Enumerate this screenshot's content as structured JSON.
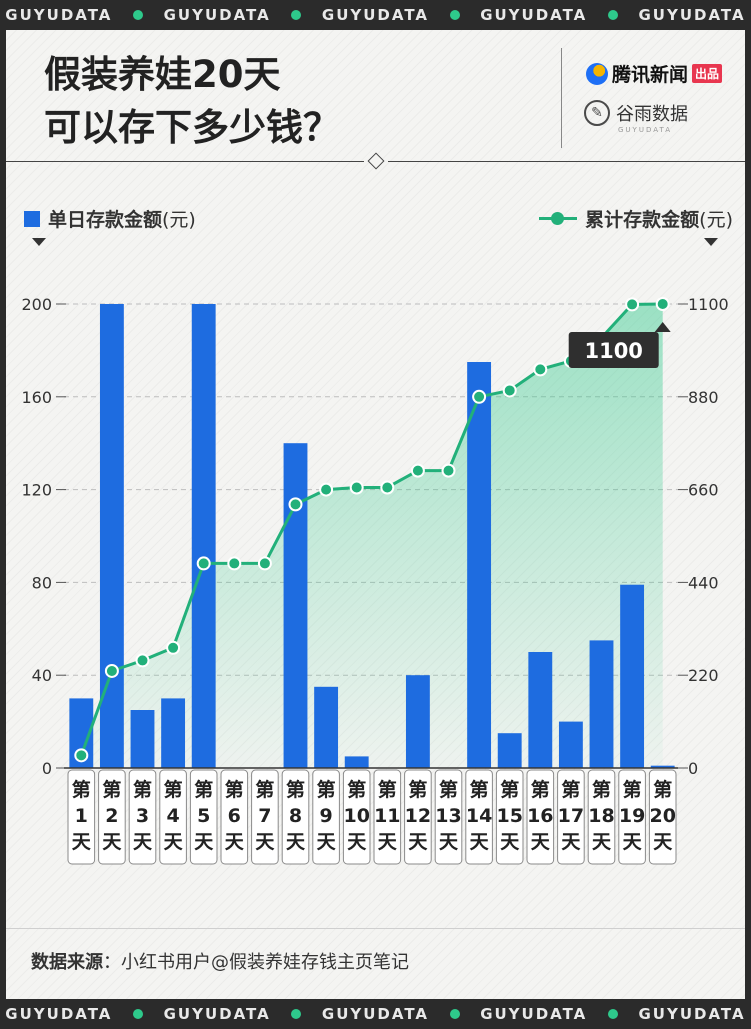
{
  "banner": {
    "brand": "GUYUDATA",
    "repeat": 5
  },
  "title": {
    "line1": "假装养娃20天",
    "line2": "可以存下多少钱？"
  },
  "publisher": {
    "name": "腾讯新闻",
    "tag": "出品"
  },
  "studio": {
    "name": "谷雨数据",
    "sub": "GUYUDATA"
  },
  "legend": {
    "bars_label": "单日存款金额",
    "bars_unit": "(元)",
    "line_label": "累计存款金额",
    "line_unit": "(元)"
  },
  "source": {
    "label": "数据来源",
    "text": "：小红书用户@假装养娃存钱主页笔记"
  },
  "chart_data": {
    "type": "bar+line",
    "categories": [
      "第1天",
      "第2天",
      "第3天",
      "第4天",
      "第5天",
      "第6天",
      "第7天",
      "第8天",
      "第9天",
      "第10天",
      "第11天",
      "第12天",
      "第13天",
      "第14天",
      "第15天",
      "第16天",
      "第17天",
      "第18天",
      "第19天",
      "第20天"
    ],
    "category_parts": [
      [
        "第",
        "1",
        "天"
      ],
      [
        "第",
        "2",
        "天"
      ],
      [
        "第",
        "3",
        "天"
      ],
      [
        "第",
        "4",
        "天"
      ],
      [
        "第",
        "5",
        "天"
      ],
      [
        "第",
        "6",
        "天"
      ],
      [
        "第",
        "7",
        "天"
      ],
      [
        "第",
        "8",
        "天"
      ],
      [
        "第",
        "9",
        "天"
      ],
      [
        "第",
        "10",
        "天"
      ],
      [
        "第",
        "11",
        "天"
      ],
      [
        "第",
        "12",
        "天"
      ],
      [
        "第",
        "13",
        "天"
      ],
      [
        "第",
        "14",
        "天"
      ],
      [
        "第",
        "15",
        "天"
      ],
      [
        "第",
        "16",
        "天"
      ],
      [
        "第",
        "17",
        "天"
      ],
      [
        "第",
        "18",
        "天"
      ],
      [
        "第",
        "19",
        "天"
      ],
      [
        "第",
        "20",
        "天"
      ]
    ],
    "series": [
      {
        "name": "单日存款金额(元)",
        "type": "bar",
        "axis": "left",
        "color": "#1e6ce0",
        "values": [
          30,
          200,
          25,
          30,
          200,
          0,
          0,
          140,
          35,
          5,
          0,
          40,
          0,
          175,
          15,
          50,
          20,
          55,
          79,
          1
        ]
      },
      {
        "name": "累计存款金额(元)",
        "type": "line",
        "axis": "right",
        "color": "#22b07a",
        "values": [
          30,
          230,
          255,
          285,
          485,
          485,
          485,
          625,
          660,
          665,
          665,
          705,
          705,
          880,
          895,
          945,
          965,
          1020,
          1099,
          1100
        ]
      }
    ],
    "y_left": {
      "min": 0,
      "max": 200,
      "ticks": [
        0,
        40,
        80,
        120,
        160,
        200
      ]
    },
    "y_right": {
      "min": 0,
      "max": 1100,
      "ticks": [
        0,
        220,
        440,
        660,
        880,
        1100
      ]
    },
    "callout": "1100",
    "grid": true,
    "legend_position": "top"
  }
}
